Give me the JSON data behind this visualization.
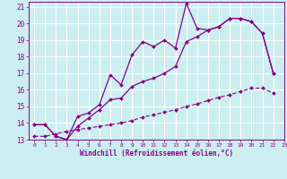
{
  "xlabel": "Windchill (Refroidissement éolien,°C)",
  "bg_color": "#cceef0",
  "grid_color": "#ffffff",
  "line_color": "#880088",
  "xlim": [
    -0.5,
    23
  ],
  "ylim": [
    13,
    21.3
  ],
  "xticks": [
    0,
    1,
    2,
    3,
    4,
    5,
    6,
    7,
    8,
    9,
    10,
    11,
    12,
    13,
    14,
    15,
    16,
    17,
    18,
    19,
    20,
    21,
    22,
    23
  ],
  "yticks": [
    13,
    14,
    15,
    16,
    17,
    18,
    19,
    20,
    21
  ],
  "line1_x": [
    0,
    1,
    2,
    3,
    4,
    5,
    6,
    7,
    8,
    9,
    10,
    11,
    12,
    13,
    14,
    15,
    16,
    17,
    18,
    19,
    20,
    21,
    22
  ],
  "line1_y": [
    13.9,
    13.9,
    13.2,
    13.0,
    14.4,
    14.6,
    15.1,
    16.9,
    16.3,
    18.1,
    18.9,
    18.6,
    19.0,
    18.5,
    21.2,
    19.7,
    19.6,
    19.8,
    20.3,
    20.3,
    20.1,
    19.4,
    17.0
  ],
  "line2_x": [
    0,
    1,
    2,
    3,
    4,
    5,
    6,
    7,
    8,
    9,
    10,
    11,
    12,
    13,
    14,
    15,
    16,
    17,
    18,
    19,
    20,
    21,
    22
  ],
  "line2_y": [
    13.9,
    13.9,
    13.2,
    13.0,
    13.8,
    14.3,
    14.8,
    15.4,
    15.5,
    16.2,
    16.5,
    16.7,
    17.0,
    17.4,
    18.9,
    19.2,
    19.6,
    19.8,
    20.3,
    20.3,
    20.1,
    19.4,
    17.0
  ],
  "line3_x": [
    0,
    1,
    2,
    3,
    4,
    5,
    6,
    7,
    8,
    9,
    10,
    11,
    12,
    13,
    14,
    15,
    16,
    17,
    18,
    19,
    20,
    21,
    22
  ],
  "line3_y": [
    13.2,
    13.2,
    13.35,
    13.5,
    13.6,
    13.7,
    13.8,
    13.9,
    14.0,
    14.15,
    14.35,
    14.5,
    14.65,
    14.8,
    15.0,
    15.15,
    15.35,
    15.55,
    15.7,
    15.9,
    16.1,
    16.1,
    15.8
  ]
}
